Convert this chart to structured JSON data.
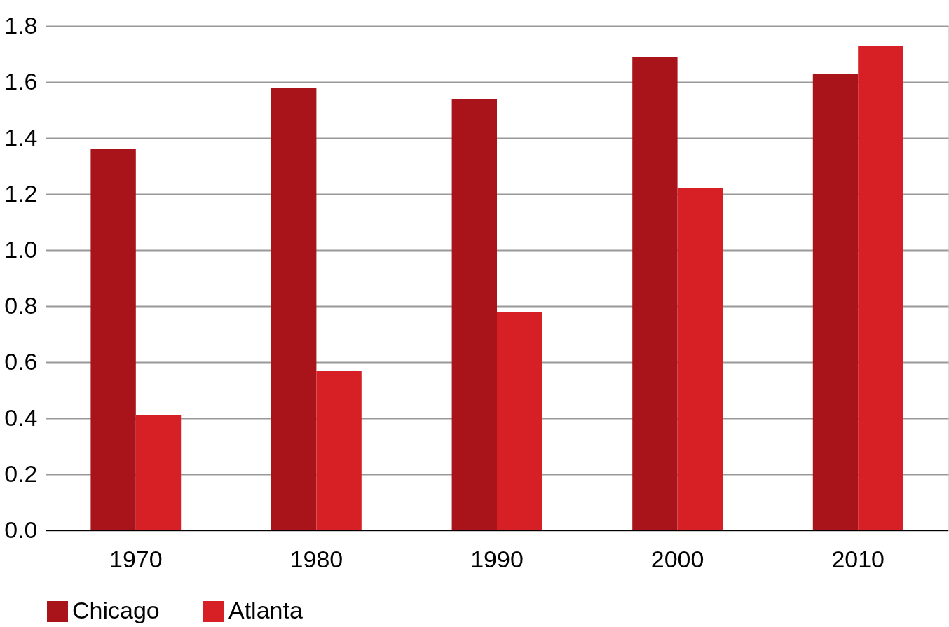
{
  "chart_data": {
    "type": "bar",
    "categories": [
      "1970",
      "1980",
      "1990",
      "2000",
      "2010"
    ],
    "series": [
      {
        "name": "Chicago",
        "color": "#a8141a",
        "values": [
          1.36,
          1.58,
          1.54,
          1.69,
          1.63
        ]
      },
      {
        "name": "Atlanta",
        "color": "#d71f26",
        "values": [
          0.41,
          0.57,
          0.78,
          1.22,
          1.73
        ]
      }
    ],
    "ylim": [
      0,
      1.8
    ],
    "yticks": [
      {
        "value": 0,
        "label": "0.0"
      },
      0.2,
      0.4,
      0.6,
      0.8,
      {
        "value": 1,
        "label": "1.0"
      },
      1.2,
      1.4,
      1.6,
      1.8
    ],
    "grid": "y",
    "legend": "bottom left"
  }
}
